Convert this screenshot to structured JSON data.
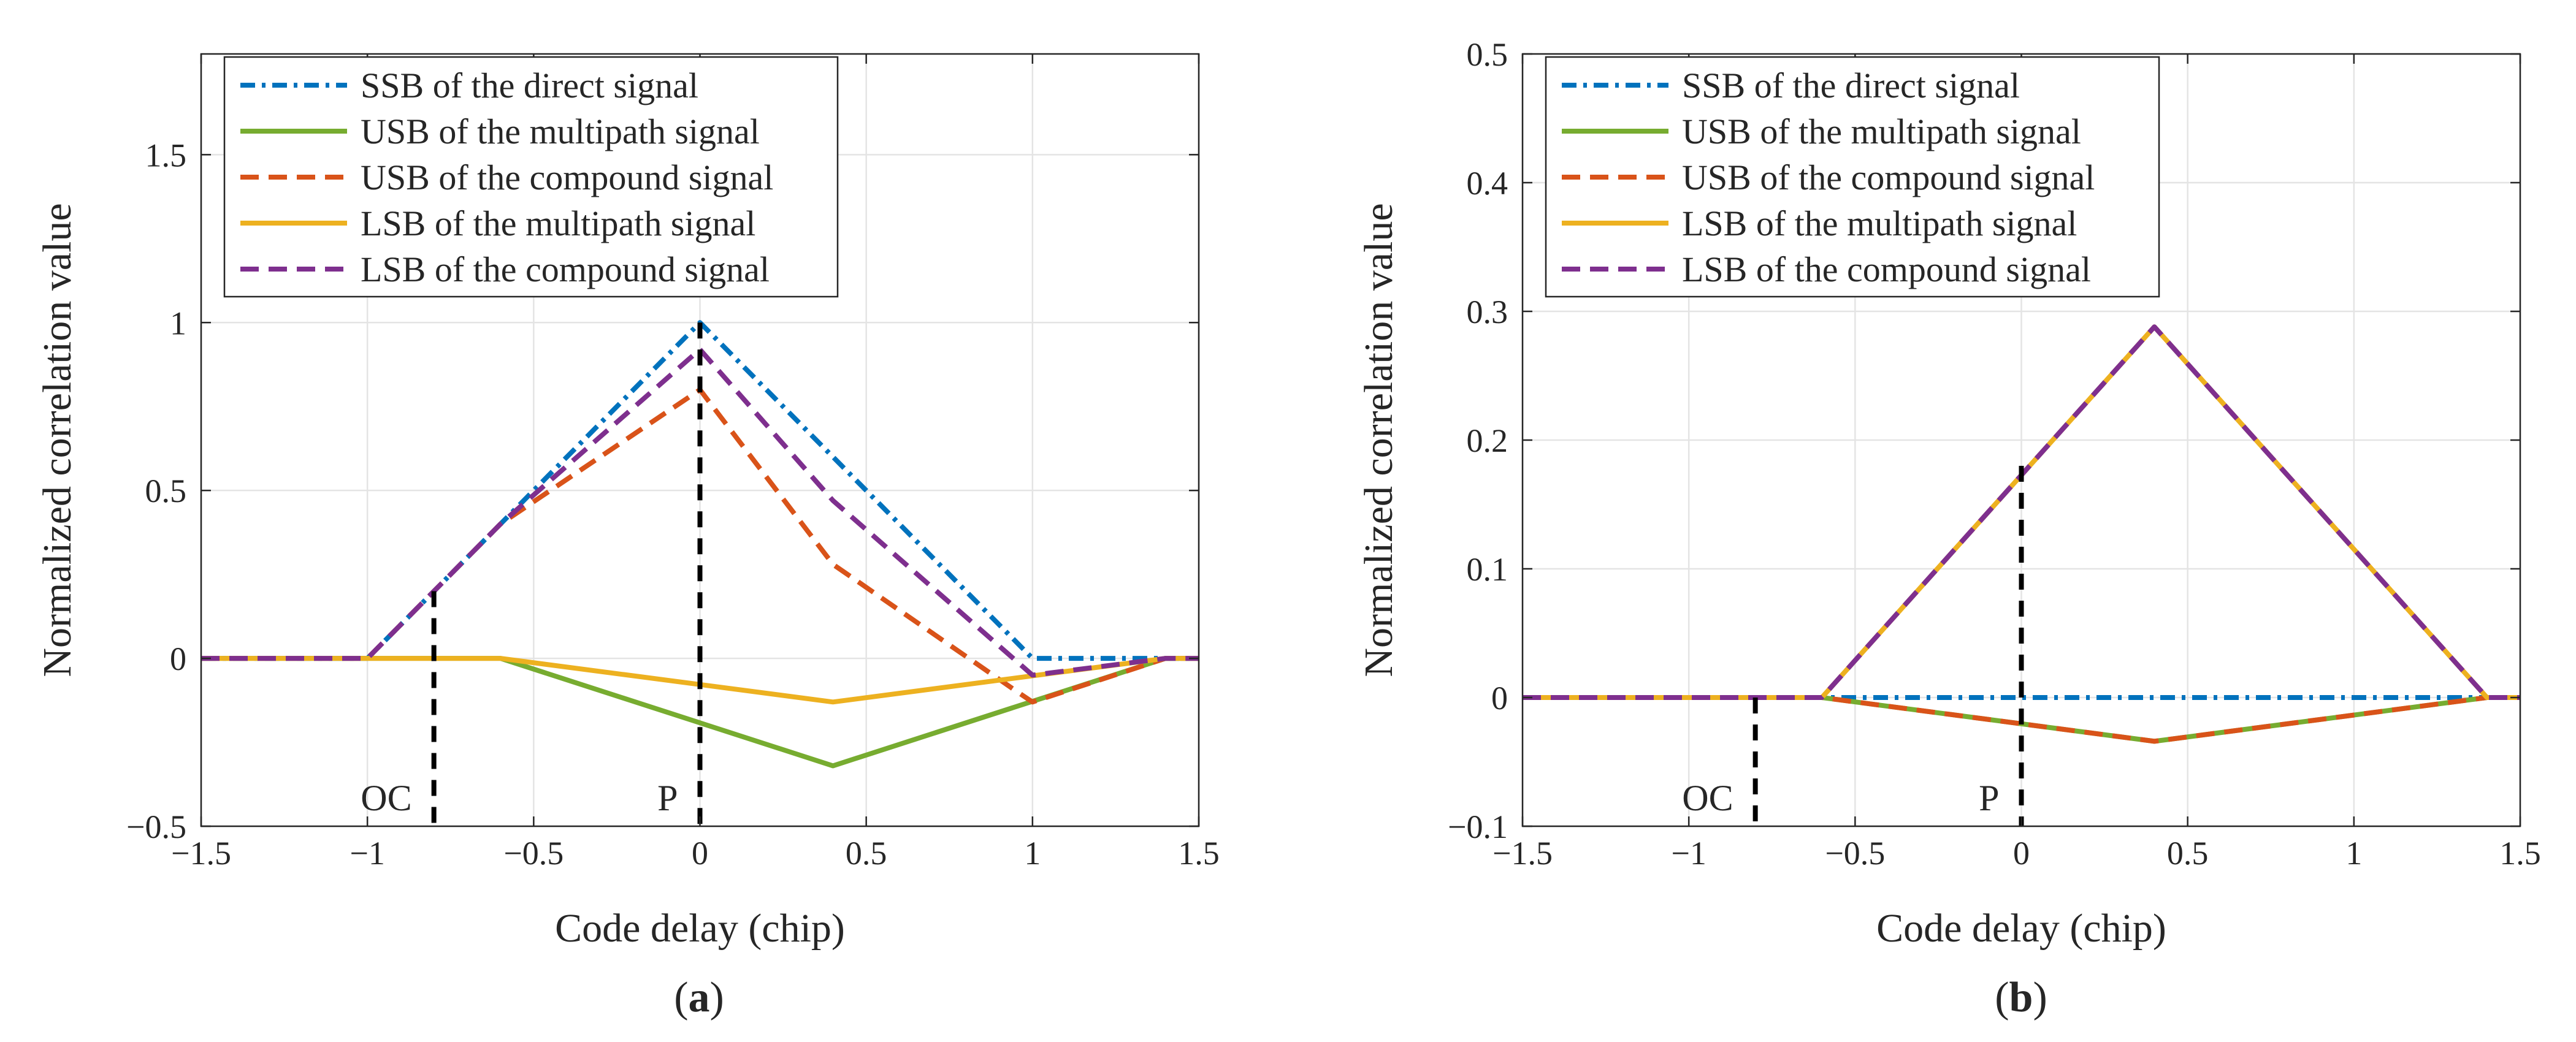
{
  "chart_data": [
    {
      "type": "line",
      "panel": "a",
      "caption_open": "(",
      "caption_letter": "a",
      "caption_close": ")",
      "xlabel": "Code delay (chip)",
      "ylabel": "Normalized correlation value",
      "xlim": [
        -1.5,
        1.5
      ],
      "ylim": [
        -0.5,
        1.8
      ],
      "xticks": [
        -1.5,
        -1,
        -0.5,
        0,
        0.5,
        1,
        1.5
      ],
      "xtick_labels": [
        "−1.5",
        "−1",
        "−0.5",
        "0",
        "0.5",
        "1",
        "1.5"
      ],
      "yticks": [
        -0.5,
        0,
        0.5,
        1,
        1.5
      ],
      "ytick_labels": [
        "−0.5",
        "0",
        "0.5",
        "1",
        "1.5"
      ],
      "grid": true,
      "legend_position": "top-left",
      "series": [
        {
          "name": "SSB of the direct signal",
          "color": "#0072BD",
          "style": "dashdot",
          "x": [
            -1.5,
            -1,
            0,
            1,
            1.5
          ],
          "y": [
            0,
            0,
            1,
            0,
            0
          ]
        },
        {
          "name": "USB of the multipath signal",
          "color": "#77AC30",
          "style": "solid",
          "x": [
            -1.5,
            -0.6,
            0.4,
            1.4,
            1.5
          ],
          "y": [
            0,
            0,
            -0.32,
            0,
            0
          ]
        },
        {
          "name": "USB of the compound signal",
          "color": "#D95319",
          "style": "dashed",
          "x": [
            -1.5,
            -1,
            -0.6,
            0,
            0.4,
            0.94,
            1,
            1.4,
            1.5
          ],
          "y": [
            0,
            0,
            0.4,
            0.8,
            0.28,
            -0.09,
            -0.13,
            0,
            0
          ]
        },
        {
          "name": "LSB of the multipath signal",
          "color": "#EDB120",
          "style": "solid",
          "x": [
            -1.5,
            -0.6,
            0.4,
            1.4,
            1.5
          ],
          "y": [
            0,
            0,
            -0.13,
            0,
            0
          ]
        },
        {
          "name": "LSB of the compound signal",
          "color": "#7E2F8E",
          "style": "dashed",
          "x": [
            -1.5,
            -1,
            -0.6,
            0,
            0.4,
            1,
            1.4,
            1.5
          ],
          "y": [
            0,
            0,
            0.4,
            0.92,
            0.47,
            -0.05,
            0,
            0
          ]
        }
      ],
      "markers": [
        {
          "label": "OC",
          "x": -0.8,
          "y_top": 0.2
        },
        {
          "label": "P",
          "x": 0,
          "y_top": 1.0
        }
      ]
    },
    {
      "type": "line",
      "panel": "b",
      "caption_open": "(",
      "caption_letter": "b",
      "caption_close": ")",
      "xlabel": "Code delay (chip)",
      "ylabel": "Normalized correlation value",
      "xlim": [
        -1.5,
        1.5
      ],
      "ylim": [
        -0.1,
        0.5
      ],
      "xticks": [
        -1.5,
        -1,
        -0.5,
        0,
        0.5,
        1,
        1.5
      ],
      "xtick_labels": [
        "−1.5",
        "−1",
        "−0.5",
        "0",
        "0.5",
        "1",
        "1.5"
      ],
      "yticks": [
        -0.1,
        0,
        0.1,
        0.2,
        0.3,
        0.4,
        0.5
      ],
      "ytick_labels": [
        "−0.1",
        "0",
        "0.1",
        "0.2",
        "0.3",
        "0.4",
        "0.5"
      ],
      "grid": true,
      "legend_position": "top-left",
      "series": [
        {
          "name": "SSB of the direct signal",
          "color": "#0072BD",
          "style": "dashdot",
          "x": [
            -1.5,
            1.5
          ],
          "y": [
            0,
            0
          ]
        },
        {
          "name": "USB of the multipath signal",
          "color": "#77AC30",
          "style": "solid",
          "x": [
            -1.5,
            -0.6,
            0.4,
            1.4,
            1.5
          ],
          "y": [
            0,
            0,
            -0.034,
            0,
            0
          ]
        },
        {
          "name": "USB of the compound signal",
          "color": "#D95319",
          "style": "dashed",
          "x": [
            -1.5,
            -0.6,
            0.4,
            1.4,
            1.5
          ],
          "y": [
            0,
            0,
            -0.034,
            0,
            0
          ]
        },
        {
          "name": "LSB of the multipath signal",
          "color": "#EDB120",
          "style": "solid",
          "x": [
            -1.5,
            -0.6,
            0.4,
            1.4,
            1.5
          ],
          "y": [
            0,
            0,
            0.288,
            0,
            0
          ]
        },
        {
          "name": "LSB of the compound signal",
          "color": "#7E2F8E",
          "style": "dashed",
          "x": [
            -1.5,
            -0.6,
            0.4,
            1.4,
            1.5
          ],
          "y": [
            0,
            0,
            0.288,
            0,
            0
          ]
        }
      ],
      "markers": [
        {
          "label": "OC",
          "x": -0.8,
          "y_top": 0
        },
        {
          "label": "P",
          "x": 0,
          "y_top": 0.18
        }
      ]
    }
  ]
}
